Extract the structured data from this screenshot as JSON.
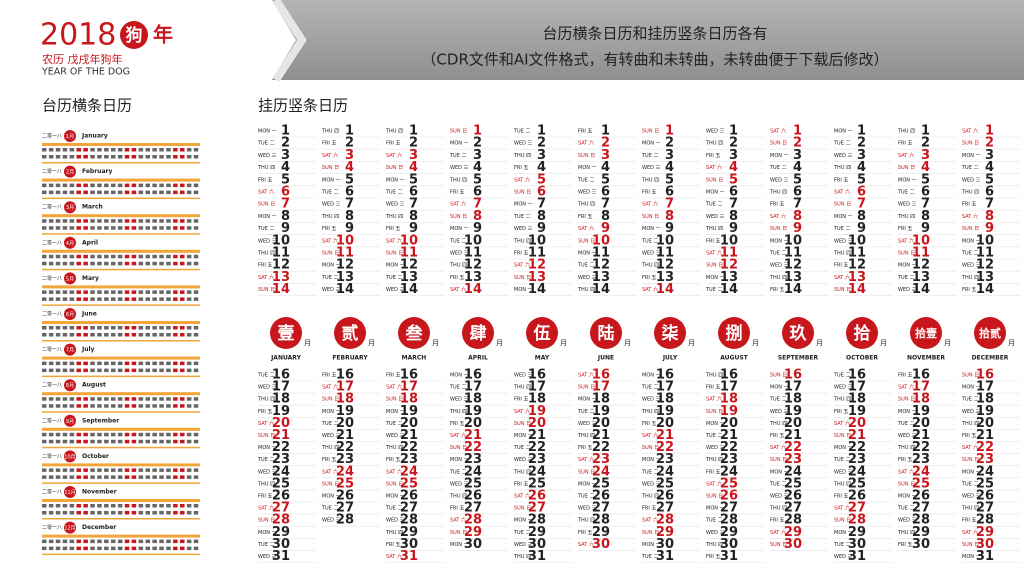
{
  "header": {
    "year": "2018",
    "dog": "狗",
    "nian": "年",
    "lunar": "农历 戊戌年狗年",
    "english": "YEAR OF THE DOG",
    "line1": "台历横条日历和挂历竖条日历各有",
    "line2": "（CDR文件和AI文件格式，有转曲和未转曲，未转曲便于下载后修改）"
  },
  "desk": {
    "title": "台历横条日历",
    "year_cn": "二零一八",
    "months_cn": [
      "1月",
      "2月",
      "3月",
      "4月",
      "5月",
      "6月",
      "7月",
      "8月",
      "9月",
      "10月",
      "11月",
      "12月"
    ],
    "months_en": [
      "January",
      "February",
      "March",
      "April",
      "Mary",
      "June",
      "July",
      "August",
      "September",
      "October",
      "November",
      "December"
    ]
  },
  "wall": {
    "title": "挂历竖条日历",
    "month_suffix": "月",
    "weekend": [
      "SAT 六",
      "SUN 日"
    ],
    "weekend_color": "#c8161d",
    "text_color": "#222222",
    "top_days": [
      1,
      2,
      3,
      4,
      5,
      6,
      7,
      8,
      9,
      10,
      11,
      12,
      13,
      14
    ],
    "bottom_days": [
      16,
      17,
      18,
      19,
      20,
      21,
      22,
      23,
      24,
      25,
      26,
      27,
      28,
      29,
      30,
      31
    ],
    "months": [
      {
        "numeral": "壹",
        "name": "JANUARY",
        "top": [
          "MON 一",
          "TUE 二",
          "WED 三",
          "THU 四",
          "FRI 五",
          "SAT 六",
          "SUN 日",
          "MON 一",
          "TUE 二",
          "WED 三",
          "THU 四",
          "FRI 五",
          "SAT 六",
          "SUN 日"
        ],
        "bottom": [
          "TUE 二",
          "WED 三",
          "THU 四",
          "FRI 五",
          "SAT 六",
          "SUN 日",
          "MON 一",
          "TUE 二",
          "WED 三",
          "THU 四",
          "FRI 五",
          "SAT 六",
          "SUN 日",
          "MON 一",
          "TUE 二",
          "WED 三"
        ]
      },
      {
        "numeral": "贰",
        "name": "FEBRUARY",
        "top": [
          "THU 四",
          "FRI 五",
          "SAT 六",
          "SUN 日",
          "MON 一",
          "TUE 二",
          "WED 三",
          "THU 四",
          "FRI 五",
          "SAT 六",
          "SUN 日",
          "MON 一",
          "TUE 二",
          "WED 三"
        ],
        "bottom": [
          "FRI 五",
          "SAT 六",
          "SUN 日",
          "MON 一",
          "TUE 二",
          "WED 三",
          "THU 四",
          "FRI 五",
          "SAT 六",
          "SUN 日",
          "MON 一",
          "TUE 二",
          "WED 三"
        ]
      },
      {
        "numeral": "叁",
        "name": "MARCH",
        "top": [
          "THU 四",
          "FRI 五",
          "SAT 六",
          "SUN 日",
          "MON 一",
          "TUE 二",
          "WED 三",
          "THU 四",
          "FRI 五",
          "SAT 六",
          "SUN 日",
          "MON 一",
          "TUE 二",
          "WED 三"
        ],
        "bottom": [
          "FRI 五",
          "SAT 六",
          "SUN 日",
          "MON 一",
          "TUE 二",
          "WED 三",
          "THU 四",
          "FRI 五",
          "SAT 六",
          "SUN 日",
          "MON 一",
          "TUE 二",
          "WED 三",
          "THU 四",
          "FRI 五",
          "SAT 六"
        ]
      },
      {
        "numeral": "肆",
        "name": "APRIL",
        "top": [
          "SUN 日",
          "MON 一",
          "TUE 二",
          "WED 三",
          "THU 四",
          "FRI 五",
          "SAT 六",
          "SUN 日",
          "MON 一",
          "TUE 二",
          "WED 三",
          "THU 四",
          "FRI 五",
          "SAT 六"
        ],
        "bottom": [
          "MON 一",
          "TUE 二",
          "WED 三",
          "THU 四",
          "FRI 五",
          "SAT 六",
          "SUN 日",
          "MON 一",
          "TUE 二",
          "WED 三",
          "THU 四",
          "FRI 五",
          "SAT 六",
          "SUN 日",
          "MON 一"
        ]
      },
      {
        "numeral": "伍",
        "name": "MAY",
        "top": [
          "TUE 二",
          "WED 三",
          "THU 四",
          "FRI 五",
          "SAT 六",
          "SUN 日",
          "MON 一",
          "TUE 二",
          "WED 三",
          "THU 四",
          "FRI 五",
          "SAT 六",
          "SUN 日",
          "MON 一"
        ],
        "bottom": [
          "WED 三",
          "THU 四",
          "FRI 五",
          "SAT 六",
          "SUN 日",
          "MON 一",
          "TUE 二",
          "WED 三",
          "THU 四",
          "FRI 五",
          "SAT 六",
          "SUN 日",
          "MON 一",
          "TUE 二",
          "WED 三",
          "THU 四"
        ]
      },
      {
        "numeral": "陆",
        "name": "JUNE",
        "top": [
          "FRI 五",
          "SAT 六",
          "SUN 日",
          "MON 一",
          "TUE 二",
          "WED 三",
          "THU 四",
          "FRI 五",
          "SAT 六",
          "SUN 日",
          "MON 一",
          "TUE 二",
          "WED 三",
          "THU 四"
        ],
        "bottom": [
          "SAT 六",
          "SUN 日",
          "MON 一",
          "TUE 二",
          "WED 三",
          "THU 四",
          "FRI 五",
          "SAT 六",
          "SUN 日",
          "MON 一",
          "TUE 二",
          "WED 三",
          "THU 四",
          "FRI 五",
          "SAT 六"
        ]
      },
      {
        "numeral": "柒",
        "name": "JULY",
        "top": [
          "SUN 日",
          "MON 一",
          "TUE 二",
          "WED 三",
          "THU 四",
          "FRI 五",
          "SAT 六",
          "SUN 日",
          "MON 一",
          "TUE 二",
          "WED 三",
          "THU 四",
          "FRI 五",
          "SAT 六"
        ],
        "bottom": [
          "MON 一",
          "TUE 二",
          "WED 三",
          "THU 四",
          "FRI 五",
          "SAT 六",
          "SUN 日",
          "MON 一",
          "TUE 二",
          "WED 三",
          "THU 四",
          "FRI 五",
          "SAT 六",
          "SUN 日",
          "MON 一",
          "TUE 二"
        ]
      },
      {
        "numeral": "捌",
        "name": "AUGUST",
        "top": [
          "WED 三",
          "THU 四",
          "FRI 五",
          "SAT 六",
          "SUN 日",
          "MON 一",
          "TUE 二",
          "WED 三",
          "THU 四",
          "FRI 五",
          "SAT 六",
          "SUN 日",
          "MON 一",
          "TUE 二"
        ],
        "bottom": [
          "THU 四",
          "FRI 五",
          "SAT 六",
          "SUN 日",
          "MON 一",
          "TUE 二",
          "WED 三",
          "THU 四",
          "FRI 五",
          "SAT 六",
          "SUN 日",
          "MON 一",
          "TUE 二",
          "WED 三",
          "THU 四",
          "FRI 五"
        ]
      },
      {
        "numeral": "玖",
        "name": "SEPTEMBER",
        "top": [
          "SAT 六",
          "SUN 日",
          "MON 一",
          "TUE 二",
          "WED 三",
          "THU 四",
          "FRI 五",
          "SAT 六",
          "SUN 日",
          "MON 一",
          "TUE 二",
          "WED 三",
          "THU 四",
          "FRI 五"
        ],
        "bottom": [
          "SUN 日",
          "MON 一",
          "TUE 二",
          "WED 三",
          "THU 四",
          "FRI 五",
          "SAT 六",
          "SUN 日",
          "MON 一",
          "TUE 二",
          "WED 三",
          "THU 四",
          "FRI 五",
          "SAT 六",
          "SUN 日"
        ]
      },
      {
        "numeral": "拾",
        "name": "OCTOBER",
        "top": [
          "MON 一",
          "TUE 二",
          "WED 三",
          "THU 四",
          "FRI 五",
          "SAT 六",
          "SUN 日",
          "MON 一",
          "TUE 二",
          "WED 三",
          "THU 四",
          "FRI 五",
          "SAT 六",
          "SUN 日"
        ],
        "bottom": [
          "TUE 二",
          "WED 三",
          "THU 四",
          "FRI 五",
          "SAT 六",
          "SUN 日",
          "MON 一",
          "TUE 二",
          "WED 三",
          "THU 四",
          "FRI 五",
          "SAT 六",
          "SUN 日",
          "MON 一",
          "TUE 二",
          "WED 三"
        ]
      },
      {
        "numeral": "拾壹",
        "name": "NOVEMBER",
        "top": [
          "THU 四",
          "FRI 五",
          "SAT 六",
          "SUN 日",
          "MON 一",
          "TUE 二",
          "WED 三",
          "THU 四",
          "FRI 五",
          "SAT 六",
          "SUN 日",
          "MON 一",
          "TUE 二",
          "WED 三"
        ],
        "bottom": [
          "FRI 五",
          "SAT 六",
          "SUN 日",
          "MON 一",
          "TUE 二",
          "WED 三",
          "THU 四",
          "FRI 五",
          "SAT 六",
          "SUN 日",
          "MON 一",
          "TUE 二",
          "WED 三",
          "THU 四",
          "FRI 五"
        ]
      },
      {
        "numeral": "拾贰",
        "name": "DECEMBER",
        "top": [
          "SAT 六",
          "SUN 日",
          "MON 一",
          "TUE 二",
          "WED 三",
          "THU 四",
          "FRI 五",
          "SAT 六",
          "SUN 日",
          "MON 一",
          "TUE 二",
          "WED 三",
          "THU 四",
          "FRI 五"
        ],
        "bottom": [
          "SUN 日",
          "MON 一",
          "TUE 二",
          "WED 三",
          "THU 四",
          "FRI 五",
          "SAT 六",
          "SUN 日",
          "MON 一",
          "TUE 二",
          "WED 三",
          "THU 四",
          "FRI 五",
          "SAT 六",
          "SUN 日",
          "MON 一"
        ]
      }
    ]
  }
}
